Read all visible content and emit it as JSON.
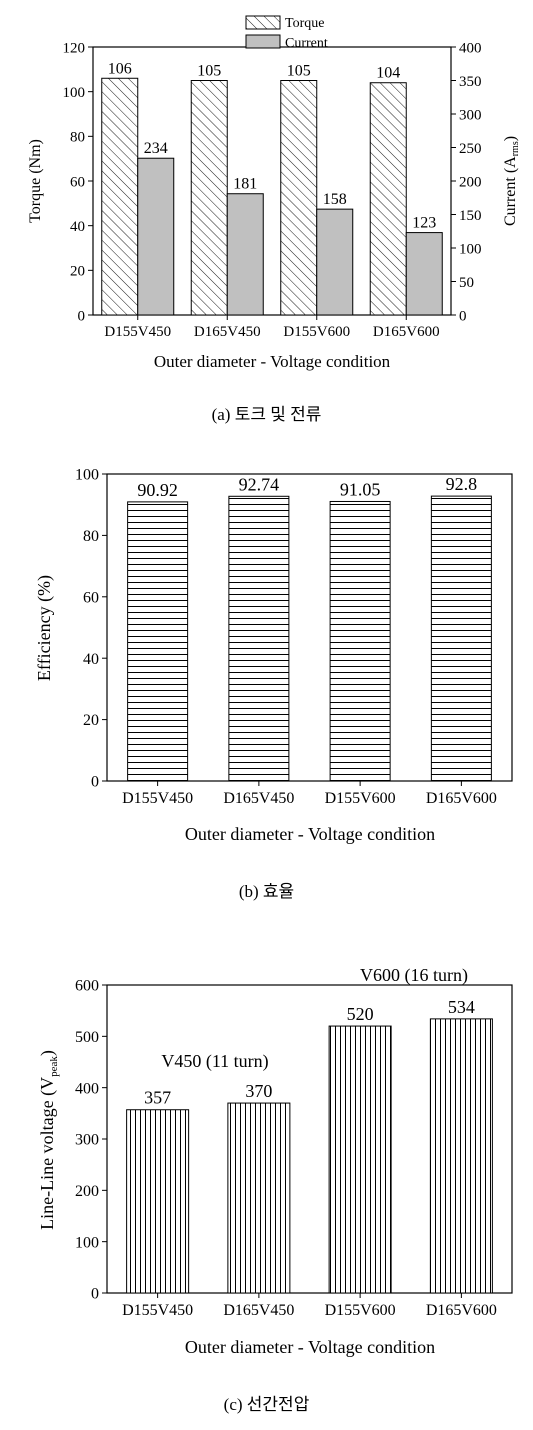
{
  "chart_data": [
    {
      "type": "bar",
      "title": "",
      "xlabel": "Outer diameter - Voltage condition",
      "ylabel": "Torque (Nm)",
      "y2label": "Current (Arms)",
      "categories": [
        "D155V450",
        "D165V450",
        "D155V600",
        "D165V600"
      ],
      "ylim": [
        0,
        120
      ],
      "y2lim": [
        0,
        400
      ],
      "yticks": [
        0,
        20,
        40,
        60,
        80,
        100,
        120
      ],
      "y2ticks": [
        0,
        50,
        100,
        150,
        200,
        250,
        300,
        350,
        400
      ],
      "series": [
        {
          "name": "Torque",
          "axis": "left",
          "values": [
            106,
            105,
            105,
            104
          ],
          "pattern": "diagonal-hatch",
          "color": "#ffffff"
        },
        {
          "name": "Current",
          "axis": "right",
          "values": [
            234,
            181,
            158,
            123
          ],
          "pattern": "solid",
          "color": "#c0c0c0"
        }
      ],
      "legend": "top-center",
      "grid": false
    },
    {
      "type": "bar",
      "title": "",
      "xlabel": "Outer diameter - Voltage condition",
      "ylabel": "Efficiency (%)",
      "categories": [
        "D155V450",
        "D165V450",
        "D155V600",
        "D165V600"
      ],
      "ylim": [
        0,
        100
      ],
      "yticks": [
        0,
        20,
        40,
        60,
        80,
        100
      ],
      "values": [
        90.92,
        92.74,
        91.05,
        92.8
      ],
      "pattern": "horizontal-lines",
      "grid": false
    },
    {
      "type": "bar",
      "title": "",
      "xlabel": "Outer diameter - Voltage condition",
      "ylabel": "Line-Line voltage (Vpeak)",
      "categories": [
        "D155V450",
        "D165V450",
        "D155V600",
        "D165V600"
      ],
      "ylim": [
        0,
        600
      ],
      "yticks": [
        0,
        100,
        200,
        300,
        400,
        500,
        600
      ],
      "values": [
        357,
        370,
        520,
        534
      ],
      "pattern": "vertical-lines",
      "annotations": [
        "V450 (11 turn)",
        "V600 (16 turn)"
      ],
      "grid": false
    }
  ],
  "captions": {
    "a": "(a) 토크 및 전류",
    "b": "(b) 효율",
    "c": "(c) 선간전압"
  }
}
